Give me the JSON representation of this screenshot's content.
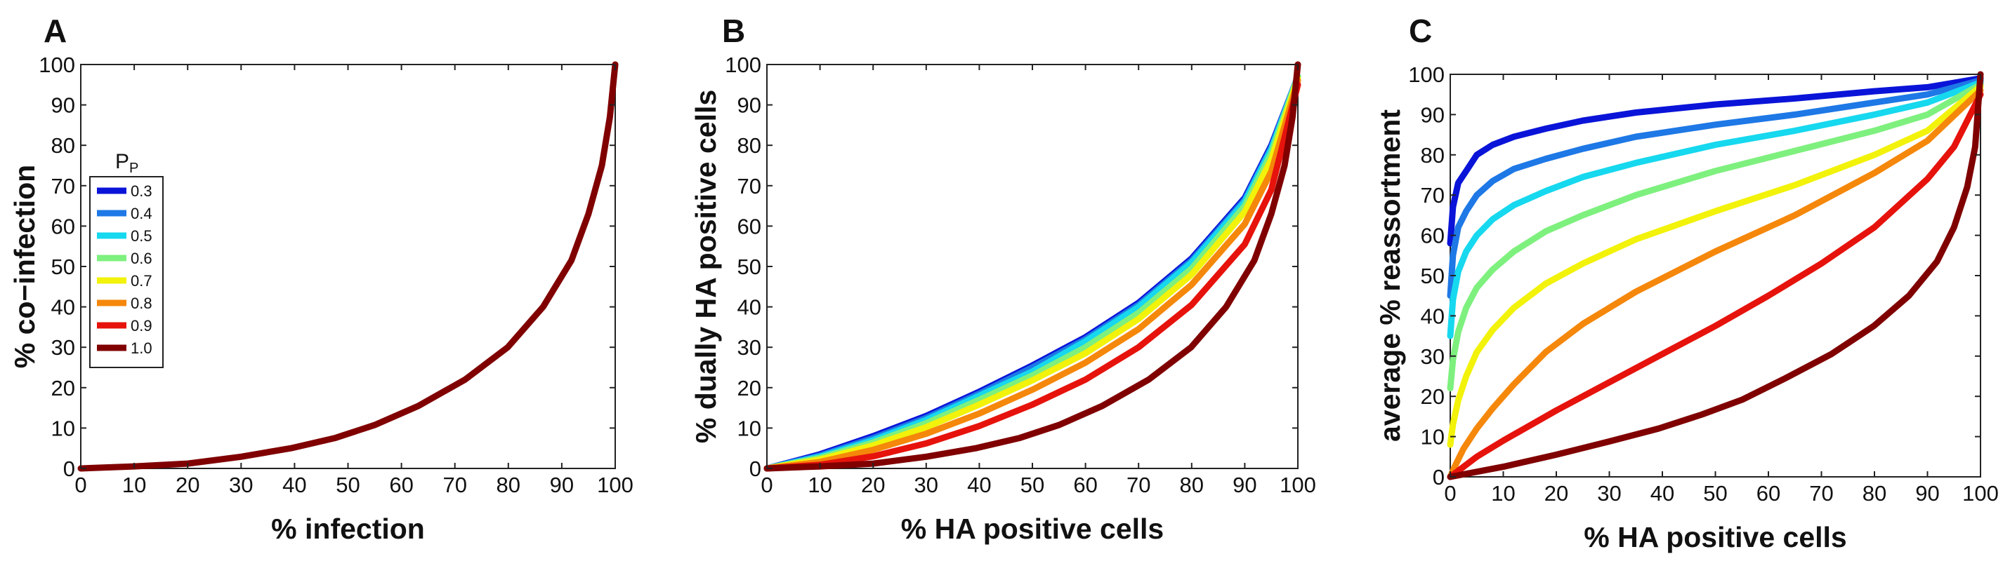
{
  "chart_data": [
    {
      "panel": "A",
      "type": "line",
      "title": "",
      "xlabel": "% infection",
      "ylabel": "% co−infection",
      "xlim": [
        0,
        100
      ],
      "ylim": [
        0,
        100
      ],
      "xticks": [
        0,
        10,
        20,
        30,
        40,
        50,
        60,
        70,
        80,
        90,
        100
      ],
      "yticks": [
        0,
        10,
        20,
        30,
        40,
        50,
        60,
        70,
        80,
        90,
        100
      ],
      "legend": {
        "title": "PP",
        "title_main": "P",
        "title_sub": "P",
        "placement": "left",
        "entries": [
          {
            "label": "0.3",
            "color": "#0a14d8"
          },
          {
            "label": "0.4",
            "color": "#1e78e6"
          },
          {
            "label": "0.5",
            "color": "#16d8ee"
          },
          {
            "label": "0.6",
            "color": "#7ef07e"
          },
          {
            "label": "0.7",
            "color": "#f2f20a"
          },
          {
            "label": "0.8",
            "color": "#f5870a"
          },
          {
            "label": "0.9",
            "color": "#e6130c"
          },
          {
            "label": "1.0",
            "color": "#800000"
          }
        ]
      },
      "series": [
        {
          "name": "1.0",
          "color": "#800000",
          "x": [
            0,
            10,
            20,
            30,
            39.3,
            47.5,
            55.1,
            63.2,
            71.9,
            79.9,
            86.5,
            91.8,
            95.0,
            97.5,
            99.0,
            100
          ],
          "y": [
            0,
            0.5,
            1.2,
            2.9,
            5.0,
            7.5,
            10.8,
            15.5,
            22.0,
            30.0,
            40.0,
            51.5,
            63.0,
            75.0,
            87.0,
            100
          ]
        }
      ]
    },
    {
      "panel": "B",
      "type": "line",
      "title": "",
      "xlabel": "% HA positive cells",
      "ylabel": "% dually HA positive cells",
      "xlim": [
        0,
        100
      ],
      "ylim": [
        0,
        100
      ],
      "xticks": [
        0,
        10,
        20,
        30,
        40,
        50,
        60,
        70,
        80,
        90,
        100
      ],
      "yticks": [
        0,
        10,
        20,
        30,
        40,
        50,
        60,
        70,
        80,
        90,
        100
      ],
      "series": [
        {
          "name": "0.3",
          "color": "#0a14d8",
          "x": [
            0,
            10,
            20,
            30,
            40,
            50,
            60,
            70,
            80,
            90,
            95,
            100
          ],
          "y": [
            0,
            3.5,
            8.0,
            13.0,
            19.0,
            25.5,
            32.5,
            41.0,
            52.0,
            67.0,
            80.0,
            97.0
          ]
        },
        {
          "name": "0.4",
          "color": "#1e78e6",
          "x": [
            0,
            10,
            20,
            30,
            40,
            50,
            60,
            70,
            80,
            90,
            95,
            100
          ],
          "y": [
            0,
            3.2,
            7.5,
            12.5,
            18.5,
            25.0,
            32.0,
            40.5,
            51.5,
            66.5,
            79.5,
            97.0
          ]
        },
        {
          "name": "0.5",
          "color": "#16d8ee",
          "x": [
            0,
            10,
            20,
            30,
            40,
            50,
            60,
            70,
            80,
            90,
            95,
            100
          ],
          "y": [
            0,
            2.9,
            7.0,
            12.0,
            18.0,
            24.0,
            31.5,
            40.0,
            51.0,
            66.0,
            79.0,
            97.0
          ]
        },
        {
          "name": "0.6",
          "color": "#7ef07e",
          "x": [
            0,
            10,
            20,
            30,
            40,
            50,
            60,
            70,
            80,
            90,
            95,
            100
          ],
          "y": [
            0,
            2.6,
            6.4,
            11.2,
            17.0,
            23.0,
            30.0,
            38.5,
            49.5,
            65.0,
            78.0,
            97.0
          ]
        },
        {
          "name": "0.7",
          "color": "#f2f20a",
          "x": [
            0,
            10,
            20,
            30,
            40,
            50,
            60,
            70,
            80,
            90,
            95,
            100
          ],
          "y": [
            0,
            2.2,
            5.7,
            10.2,
            15.8,
            21.8,
            28.5,
            37.0,
            48.0,
            63.5,
            76.5,
            96.5
          ]
        },
        {
          "name": "0.8",
          "color": "#f5870a",
          "x": [
            0,
            10,
            20,
            30,
            40,
            50,
            60,
            70,
            80,
            90,
            95,
            100
          ],
          "y": [
            0,
            1.6,
            4.6,
            8.6,
            13.6,
            19.5,
            26.2,
            34.5,
            45.5,
            60.5,
            73.5,
            96.0
          ]
        },
        {
          "name": "0.9",
          "color": "#e6130c",
          "x": [
            0,
            10,
            20,
            30,
            40,
            50,
            60,
            70,
            80,
            90,
            95,
            100
          ],
          "y": [
            0,
            0.9,
            3.0,
            6.2,
            10.5,
            15.8,
            22.0,
            30.0,
            40.5,
            55.5,
            69.0,
            95.0
          ]
        },
        {
          "name": "1.0",
          "color": "#800000",
          "x": [
            0,
            10,
            20,
            30,
            39.3,
            47.5,
            55.1,
            63.2,
            71.9,
            79.9,
            86.5,
            91.8,
            95.0,
            97.5,
            99.0,
            100
          ],
          "y": [
            0,
            0.5,
            1.2,
            2.9,
            5.0,
            7.5,
            10.8,
            15.5,
            22.0,
            30.0,
            40.0,
            51.5,
            63.0,
            75.0,
            87.0,
            100
          ]
        }
      ]
    },
    {
      "panel": "C",
      "type": "line",
      "title": "",
      "xlabel": "% HA positive cells",
      "ylabel": "average % reassortment",
      "xlim": [
        0,
        100
      ],
      "ylim": [
        0,
        100
      ],
      "xticks": [
        0,
        10,
        20,
        30,
        40,
        50,
        60,
        70,
        80,
        90,
        100
      ],
      "yticks": [
        0,
        10,
        20,
        30,
        40,
        50,
        60,
        70,
        80,
        90,
        100
      ],
      "series": [
        {
          "name": "0.3",
          "color": "#0a14d8",
          "x": [
            0,
            0.5,
            1.5,
            3,
            5,
            8,
            12,
            18,
            25,
            35,
            50,
            65,
            80,
            90,
            100
          ],
          "y": [
            58,
            67,
            73,
            76,
            80,
            82.5,
            84.5,
            86.5,
            88.5,
            90.5,
            92.5,
            94.0,
            95.8,
            96.8,
            99
          ]
        },
        {
          "name": "0.4",
          "color": "#1e78e6",
          "x": [
            0,
            0.5,
            1.5,
            3,
            5,
            8,
            12,
            18,
            25,
            35,
            50,
            65,
            80,
            90,
            100
          ],
          "y": [
            45,
            55,
            62,
            66,
            70,
            73.5,
            76.5,
            79,
            81.5,
            84.5,
            87.5,
            90.0,
            93.0,
            95.0,
            98.5
          ]
        },
        {
          "name": "0.5",
          "color": "#16d8ee",
          "x": [
            0,
            0.5,
            1.5,
            3,
            5,
            8,
            12,
            18,
            25,
            35,
            50,
            65,
            80,
            90,
            100
          ],
          "y": [
            35,
            44,
            51,
            56,
            60,
            64,
            67.5,
            71,
            74.5,
            78,
            82.5,
            86.0,
            90.0,
            93.0,
            98
          ]
        },
        {
          "name": "0.6",
          "color": "#7ef07e",
          "x": [
            0,
            0.5,
            1.5,
            3,
            5,
            8,
            12,
            18,
            25,
            35,
            50,
            65,
            80,
            90,
            100
          ],
          "y": [
            22,
            29,
            36,
            42,
            47,
            51.5,
            56,
            61,
            65,
            70,
            76,
            81.0,
            86.0,
            90.0,
            97.5
          ]
        },
        {
          "name": "0.7",
          "color": "#f2f20a",
          "x": [
            0,
            0.5,
            1.5,
            3,
            5,
            8,
            12,
            18,
            25,
            35,
            50,
            65,
            80,
            90,
            100
          ],
          "y": [
            8,
            13,
            19,
            25,
            31,
            36.5,
            42,
            48,
            53,
            59,
            66,
            72.5,
            80.0,
            86.0,
            97
          ]
        },
        {
          "name": "0.8",
          "color": "#f5870a",
          "x": [
            0,
            1,
            2.5,
            5,
            8,
            12,
            18,
            25,
            35,
            50,
            65,
            80,
            90,
            100
          ],
          "y": [
            0,
            3,
            7,
            12,
            17,
            23,
            31,
            38,
            46,
            56,
            65,
            75.5,
            83.5,
            96
          ]
        },
        {
          "name": "0.9",
          "color": "#e6130c",
          "x": [
            0,
            5,
            10,
            20,
            30,
            40,
            50,
            60,
            70,
            80,
            90,
            95,
            100
          ],
          "y": [
            0,
            5,
            9,
            16.5,
            23.5,
            30.5,
            37.5,
            45,
            53,
            62,
            74,
            82,
            95
          ]
        },
        {
          "name": "1.0",
          "color": "#800000",
          "x": [
            0,
            10,
            20,
            30,
            39.3,
            47.5,
            55.1,
            63.2,
            71.9,
            79.9,
            86.5,
            91.8,
            95.0,
            97.5,
            99.0,
            100
          ],
          "y": [
            0,
            2.5,
            5.5,
            8.8,
            12.0,
            15.5,
            19.2,
            24.5,
            30.5,
            37.5,
            45.0,
            53.5,
            62.0,
            72.0,
            82.0,
            100
          ]
        }
      ]
    }
  ]
}
